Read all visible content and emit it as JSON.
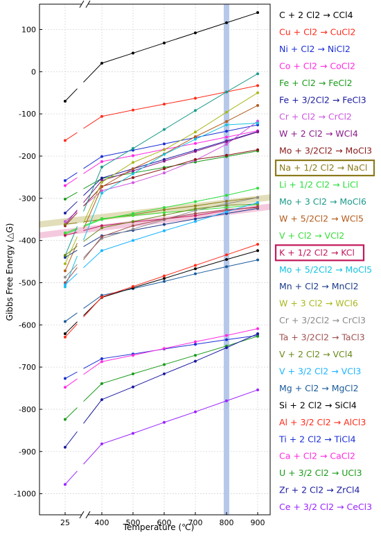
{
  "chart_data": {
    "type": "line",
    "xlabel": "Temperature (℃)",
    "ylabel": "Gibbs Free Energy (△G)",
    "ylim": [
      -1050,
      160
    ],
    "x": [
      25,
      400,
      500,
      600,
      700,
      800,
      900
    ],
    "x_tick_labels": [
      "25",
      "400",
      "500",
      "600",
      "700",
      "800",
      "900"
    ],
    "y_ticks": [
      100,
      0,
      -100,
      -200,
      -300,
      -400,
      -500,
      -600,
      -700,
      -800,
      -900,
      -1000
    ],
    "y_tick_labels": [
      "100",
      "0",
      "-100",
      "-200",
      "-300",
      "-400",
      "-500",
      "-600",
      "-700",
      "-800",
      "-900",
      "-1000"
    ],
    "axis_break_after_x": 25,
    "grid": true,
    "legend_position": "right",
    "highlight_x": 800,
    "highlight_color": "#aabfe6",
    "reference_bands": [
      {
        "label": "Na + 1/2 Cl2 → NaCl",
        "y_at_xmin": -362,
        "y_at_xmax": -298,
        "color": "#d8d3a3"
      },
      {
        "label": "K + 1/2 Cl2 → KCl",
        "y_at_xmin": -388,
        "y_at_xmax": -320,
        "color": "#f0b7d3"
      }
    ],
    "series": [
      {
        "name": "C + 2 Cl2 → CCl4",
        "color": "#000000",
        "values": [
          -70,
          20,
          44,
          68,
          92,
          116,
          140
        ]
      },
      {
        "name": "Cu + Cl2 → CuCl2",
        "color": "#ff2a1a",
        "values": [
          -163,
          -106,
          -91,
          -77,
          -63,
          -48,
          -33
        ]
      },
      {
        "name": "Ni + Cl2 → NiCl2",
        "color": "#1a2fd4",
        "values": [
          -258,
          -201,
          -186,
          -171,
          -156,
          -141,
          -126
        ]
      },
      {
        "name": "Co + Cl2 → CoCl2",
        "color": "#ff2ae0",
        "values": [
          -270,
          -213,
          -199,
          -184,
          -170,
          -155,
          -140
        ]
      },
      {
        "name": "Fe + Cl2 → FeCl2",
        "color": "#1a9a1a",
        "values": [
          -302,
          -253,
          -240,
          -227,
          -214,
          -201,
          -188
        ]
      },
      {
        "name": "Fe + 3/2Cl2 → FeCl3",
        "color": "#1a1aa0",
        "values": [
          -335,
          -252,
          -230,
          -208,
          -186,
          -164,
          -142
        ]
      },
      {
        "name": "Cr + Cl2 → CrCl2",
        "color": "#cc55e0",
        "values": [
          -355,
          -282,
          -263,
          -240,
          -210,
          -172,
          -117
        ]
      },
      {
        "name": "W + 2 Cl2 → WCl4",
        "color": "#8a1a8a",
        "values": [
          -362,
          -258,
          -235,
          -212,
          -189,
          -166,
          -143
        ]
      },
      {
        "name": "Mo + 3/2Cl2 → MoCl3",
        "color": "#8a1a1a",
        "values": [
          -365,
          -272,
          -251,
          -230,
          -208,
          -198,
          -185
        ]
      },
      {
        "name": "Na + 1/2 Cl2 → NaCl",
        "color": "#8a7a1a",
        "values": [
          -362,
          -350,
          -339,
          -327,
          -318,
          -307,
          -298
        ]
      },
      {
        "name": "Li + 1/2 Cl2 → LiCl",
        "color": "#2add3a",
        "values": [
          -385,
          -350,
          -336,
          -322,
          -308,
          -293,
          -276
        ]
      },
      {
        "name": "Mo + 3 Cl2 → MoCl6",
        "color": "#1a9a8a",
        "values": [
          -436,
          -226,
          -182,
          -137,
          -92,
          -48,
          -5
        ]
      },
      {
        "name": "W + 5/2Cl2 → WCl5",
        "color": "#b35a1a",
        "values": [
          -472,
          -273,
          -230,
          -195,
          -154,
          -118,
          -80
        ]
      },
      {
        "name": "V + Cl2 → VCl2",
        "color": "#3add3a",
        "values": [
          -382,
          -348,
          -341,
          -334,
          -328,
          -322,
          -315
        ]
      },
      {
        "name": "K + 1/2 Cl2 → KCl",
        "color": "#c2185b",
        "values": [
          -388,
          -365,
          -356,
          -349,
          -341,
          -329,
          -320
        ]
      },
      {
        "name": "Mo + 5/2Cl2 → MoCl5",
        "color": "#14c3e0",
        "values": [
          -510,
          -288,
          -242,
          -196,
          -160,
          -126,
          -122
        ]
      },
      {
        "name": "Mn + Cl2 → MnCl2",
        "color": "#1a3a8a",
        "values": [
          -440,
          -389,
          -376,
          -362,
          -349,
          -336,
          -324
        ]
      },
      {
        "name": "W + 3 Cl2 → WCl6",
        "color": "#a8b81a",
        "values": [
          -455,
          -262,
          -215,
          -185,
          -143,
          -96,
          -50
        ]
      },
      {
        "name": "Cr + 3/2Cl2 → CrCl3",
        "color": "#8a8a8a",
        "values": [
          -487,
          -395,
          -373,
          -351,
          -329,
          -313,
          -298
        ]
      },
      {
        "name": "Ta + 3/2Cl2 → TaCl3",
        "color": "#a05050",
        "values": [
          -500,
          -391,
          -365,
          -349,
          -336,
          -327,
          -322
        ]
      },
      {
        "name": "V + 2 Cl2 → VCl4",
        "color": "#6a8a1a",
        "values": [
          -435,
          -370,
          -355,
          -340,
          -325,
          -317,
          -313
        ]
      },
      {
        "name": "V + 3/2 Cl2 → VCl3",
        "color": "#1ab5ff",
        "values": [
          -505,
          -424,
          -400,
          -377,
          -355,
          -332,
          -310
        ]
      },
      {
        "name": "Mg + Cl2 → MgCl2",
        "color": "#1a5a9a",
        "values": [
          -592,
          -530,
          -514,
          -497,
          -479,
          -462,
          -446
        ]
      },
      {
        "name": "Si + 2 Cl2 → SiCl4",
        "color": "#000000",
        "values": [
          -621,
          -535,
          -512,
          -490,
          -467,
          -445,
          -424
        ]
      },
      {
        "name": "Al + 3/2 Cl2 → AlCl3",
        "color": "#ff2a1a",
        "values": [
          -629,
          -534,
          -509,
          -484,
          -459,
          -434,
          -409
        ]
      },
      {
        "name": "Ti + 2 Cl2 → TiCl4",
        "color": "#1a2fd4",
        "values": [
          -727,
          -680,
          -669,
          -657,
          -646,
          -635,
          -625
        ]
      },
      {
        "name": "Ca + Cl2 → CaCl2",
        "color": "#ff2ae0",
        "values": [
          -748,
          -687,
          -672,
          -656,
          -640,
          -625,
          -609
        ]
      },
      {
        "name": "U + 3/2 Cl2 → UCl3",
        "color": "#1a9a1a",
        "values": [
          -824,
          -739,
          -716,
          -694,
          -672,
          -650,
          -627
        ]
      },
      {
        "name": "Zr + 2 Cl2 → ZrCl4",
        "color": "#1a1aa0",
        "values": [
          -890,
          -777,
          -747,
          -716,
          -686,
          -654,
          -621
        ]
      },
      {
        "name": "Ce + 3/2 Cl2 → CeCl3",
        "color": "#9a22ff",
        "values": [
          -978,
          -882,
          -857,
          -831,
          -806,
          -780,
          -754
        ]
      }
    ]
  },
  "legend_rows": [
    {
      "a": "C + 2 Cl",
      "s1": "2",
      "b": " → CCl",
      "s2": "4",
      "c": "",
      "type": "sub"
    },
    {
      "a": "Cu + Cl",
      "s1": "2",
      "b": " → CuCl",
      "s2": "2",
      "c": ""
    },
    {
      "a": "Ni + Cl",
      "s1": "2",
      "b": " → NiCl",
      "s2": "2",
      "c": ""
    },
    {
      "a": "Co + Cl",
      "s1": "2",
      "b": " → CoCl",
      "s2": "2",
      "c": ""
    },
    {
      "a": "Fe + Cl",
      "s1": "2",
      "b": " → FeCl",
      "s2": "2",
      "c": ""
    },
    {
      "a": "Fe + ³/",
      "s1": "2",
      "b": "Cl₂ → FeCl",
      "s2": "3",
      "c": ""
    },
    {
      "a": "Cr + Cl",
      "s1": "2",
      "b": " → CrCl",
      "s2": "2",
      "c": ""
    },
    {
      "a": "W + 2 Cl",
      "s1": "2",
      "b": " → WCl",
      "s2": "4",
      "c": ""
    },
    {
      "a": "Mo + ³/",
      "s1": "2",
      "b": "Cl₂ → MoCl",
      "s2": "3",
      "c": ""
    },
    {
      "a": "Na + ¹/",
      "s1": "2",
      "b": " Cl₂ → NaCl",
      "s2": "",
      "c": ""
    },
    {
      "a": "Li + ¹/",
      "s1": "2",
      "b": " Cl₂ → LiCl",
      "s2": "",
      "c": ""
    },
    {
      "a": "Mo + 3 Cl",
      "s1": "2",
      "b": " → MoCl",
      "s2": "6",
      "c": ""
    },
    {
      "a": "W + ⁵/",
      "s1": "2",
      "b": "Cl₂ → WCl",
      "s2": "5",
      "c": ""
    },
    {
      "a": "V + Cl",
      "s1": "2",
      "b": " → VCl",
      "s2": "2",
      "c": ""
    },
    {
      "a": "K + ¹/",
      "s1": "2",
      "b": " Cl₂ → KCl",
      "s2": "",
      "c": ""
    },
    {
      "a": "Mo + ⁵/",
      "s1": "2",
      "b": "Cl₂ → MoCl",
      "s2": "5",
      "c": ""
    },
    {
      "a": "Mn + Cl",
      "s1": "2",
      "b": " → MnCl",
      "s2": "2",
      "c": ""
    },
    {
      "a": "W + 3 Cl",
      "s1": "2",
      "b": " → WCl",
      "s2": "6",
      "c": ""
    },
    {
      "a": "Cr + ³/",
      "s1": "2",
      "b": "Cl₂ → CrCl",
      "s2": "3",
      "c": ""
    },
    {
      "a": "Ta + ³/",
      "s1": "2",
      "b": "Cl₂ → TaCl",
      "s2": "3",
      "c": ""
    },
    {
      "a": "V + 2 Cl",
      "s1": "2",
      "b": " → VCl",
      "s2": "4",
      "c": ""
    },
    {
      "a": "V + ³/",
      "s1": "2",
      "b": " Cl₂ → VCl",
      "s2": "3",
      "c": ""
    },
    {
      "a": "Mg + Cl",
      "s1": "2",
      "b": " → MgCl",
      "s2": "2",
      "c": ""
    },
    {
      "a": "Si + 2 Cl",
      "s1": "2",
      "b": " → SiCl",
      "s2": "4",
      "c": ""
    },
    {
      "a": "Al + ³/",
      "s1": "2",
      "b": " Cl₂ → AlCl",
      "s2": "3",
      "c": ""
    },
    {
      "a": "Ti + 2 Cl",
      "s1": "2",
      "b": " → TiCl",
      "s2": "4",
      "c": ""
    },
    {
      "a": "Ca + Cl",
      "s1": "2",
      "b": " → CaCl",
      "s2": "2",
      "c": ""
    },
    {
      "a": "U + ³/",
      "s1": "2",
      "b": " Cl₂ → UCl",
      "s2": "3",
      "c": ""
    },
    {
      "a": "Zr + 2 Cl",
      "s1": "2",
      "b": " → ZrCl",
      "s2": "4",
      "c": ""
    },
    {
      "a": "Ce + ³/",
      "s1": "2",
      "b": " Cl₂ → CeCl",
      "s2": "3",
      "c": ""
    }
  ],
  "boxed_legend": [
    {
      "index": 9,
      "color": "#8a7a1a"
    },
    {
      "index": 14,
      "color": "#c2185b"
    }
  ]
}
